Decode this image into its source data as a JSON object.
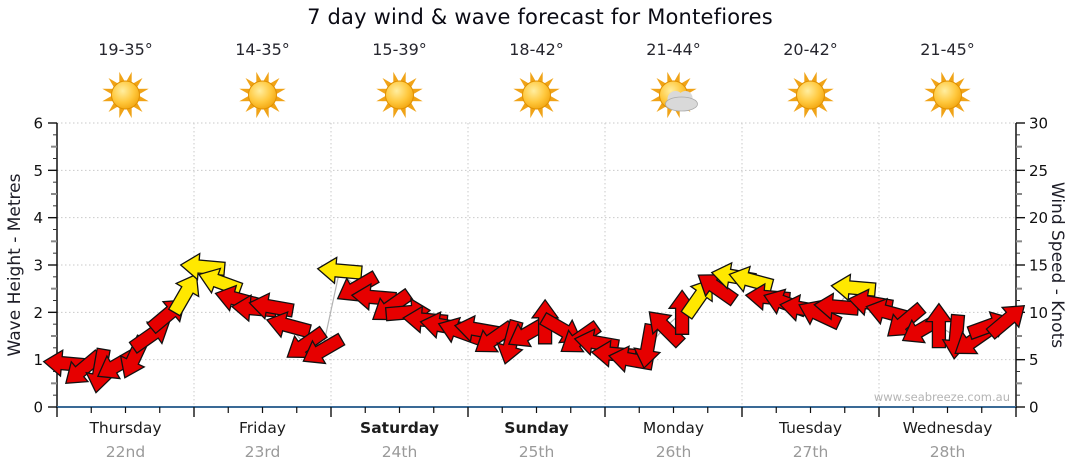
{
  "title": "7 day wind & wave forecast for Montefiores",
  "watermark": "www.seabreeze.com.au",
  "colors": {
    "arrow_red": "#e60000",
    "arrow_yellow": "#ffe800",
    "arrow_outline": "#111111",
    "axis_bottom_blue": "#3a6a96",
    "axis_black": "#111111",
    "grid_dotted": "#c9c9c9",
    "connector_grey": "#b3b3b3",
    "date_grey": "#9a9a9a",
    "sun_core": "#ffc83d",
    "sun_ray": "#f0a317",
    "cloud_grey": "#d9d9d9"
  },
  "y_left": {
    "label": "Wave Height - Metres",
    "ticks": [
      "0",
      "1",
      "2",
      "3",
      "4",
      "5",
      "6"
    ]
  },
  "y_right": {
    "label": "Wind Speed - Knots",
    "ticks": [
      "0",
      "5",
      "10",
      "15",
      "20",
      "25",
      "30"
    ]
  },
  "days": [
    {
      "name": "Thursday",
      "date": "22nd",
      "temp": "19-35°",
      "icon": "sun",
      "bold": false
    },
    {
      "name": "Friday",
      "date": "23rd",
      "temp": "14-35°",
      "icon": "sun",
      "bold": false
    },
    {
      "name": "Saturday",
      "date": "24th",
      "temp": "15-39°",
      "icon": "sun",
      "bold": true
    },
    {
      "name": "Sunday",
      "date": "25th",
      "temp": "18-42°",
      "icon": "sun",
      "bold": true
    },
    {
      "name": "Monday",
      "date": "26th",
      "temp": "21-44°",
      "icon": "sun-cloud",
      "bold": false
    },
    {
      "name": "Tuesday",
      "date": "27th",
      "temp": "20-42°",
      "icon": "sun",
      "bold": false
    },
    {
      "name": "Wednesday",
      "date": "28th",
      "temp": "21-45°",
      "icon": "sun",
      "bold": false
    }
  ],
  "chart_data": {
    "type": "line",
    "subtype": "wind-direction-arrow-series",
    "x_axis": {
      "days": 7,
      "points_per_day": 8,
      "interval_hours": 3
    },
    "ylim_left_metres": [
      0,
      6
    ],
    "ylim_right_knots": [
      0,
      30
    ],
    "grid": "dotted horizontal every 5 knots, dotted vertical at day boundaries",
    "legend_position": "none",
    "points_format": [
      "slot_index",
      "wind_knots",
      "arrow_direction_deg_cw_from_east",
      "color"
    ],
    "points": [
      [
        0,
        4.6,
        185,
        "red"
      ],
      [
        1,
        4.0,
        140,
        "red"
      ],
      [
        2,
        3.8,
        100,
        "red"
      ],
      [
        3,
        4.4,
        150,
        "red"
      ],
      [
        4,
        5.2,
        115,
        "red"
      ],
      [
        5,
        7.6,
        325,
        "red"
      ],
      [
        6,
        9.8,
        320,
        "red"
      ],
      [
        7,
        12.0,
        300,
        "yellow"
      ],
      [
        8,
        14.8,
        185,
        "yellow"
      ],
      [
        9,
        13.2,
        200,
        "yellow"
      ],
      [
        10,
        11.4,
        195,
        "red"
      ],
      [
        11,
        10.4,
        185,
        "red"
      ],
      [
        12,
        10.6,
        190,
        "red"
      ],
      [
        13,
        8.6,
        195,
        "red"
      ],
      [
        14,
        6.6,
        145,
        "red"
      ],
      [
        15,
        6.0,
        150,
        "red"
      ],
      [
        16,
        14.4,
        185,
        "yellow"
      ],
      [
        17,
        12.6,
        150,
        "red"
      ],
      [
        18,
        11.6,
        185,
        "red"
      ],
      [
        19,
        10.6,
        145,
        "red"
      ],
      [
        20,
        10.0,
        355,
        "red"
      ],
      [
        21,
        9.2,
        185,
        "red"
      ],
      [
        22,
        8.6,
        190,
        "red"
      ],
      [
        23,
        8.0,
        200,
        "red"
      ],
      [
        24,
        8.2,
        190,
        "red"
      ],
      [
        25,
        7.2,
        145,
        "red"
      ],
      [
        26,
        6.8,
        105,
        "red"
      ],
      [
        27,
        7.8,
        150,
        "red"
      ],
      [
        28,
        9.0,
        270,
        "red"
      ],
      [
        29,
        8.2,
        30,
        "red"
      ],
      [
        30,
        7.2,
        145,
        "red"
      ],
      [
        31,
        6.8,
        190,
        "red"
      ],
      [
        32,
        5.6,
        185,
        "red"
      ],
      [
        33,
        5.0,
        190,
        "red"
      ],
      [
        34,
        6.4,
        100,
        "red"
      ],
      [
        35,
        8.4,
        225,
        "red"
      ],
      [
        36,
        10.0,
        270,
        "red"
      ],
      [
        37,
        11.6,
        305,
        "yellow"
      ],
      [
        38,
        12.6,
        215,
        "red"
      ],
      [
        39,
        13.8,
        190,
        "yellow"
      ],
      [
        40,
        13.4,
        195,
        "yellow"
      ],
      [
        41,
        11.6,
        185,
        "red"
      ],
      [
        42,
        11.0,
        200,
        "red"
      ],
      [
        43,
        10.4,
        190,
        "red"
      ],
      [
        44,
        9.8,
        205,
        "red"
      ],
      [
        45,
        10.6,
        185,
        "red"
      ],
      [
        46,
        12.6,
        185,
        "yellow"
      ],
      [
        47,
        11.0,
        190,
        "red"
      ],
      [
        48,
        10.0,
        195,
        "red"
      ],
      [
        49,
        9.0,
        140,
        "red"
      ],
      [
        50,
        8.2,
        150,
        "red"
      ],
      [
        51,
        8.6,
        270,
        "red"
      ],
      [
        52,
        7.4,
        95,
        "red"
      ],
      [
        53,
        7.0,
        145,
        "red"
      ],
      [
        54,
        8.6,
        340,
        "red"
      ],
      [
        55,
        9.2,
        320,
        "red"
      ]
    ]
  }
}
